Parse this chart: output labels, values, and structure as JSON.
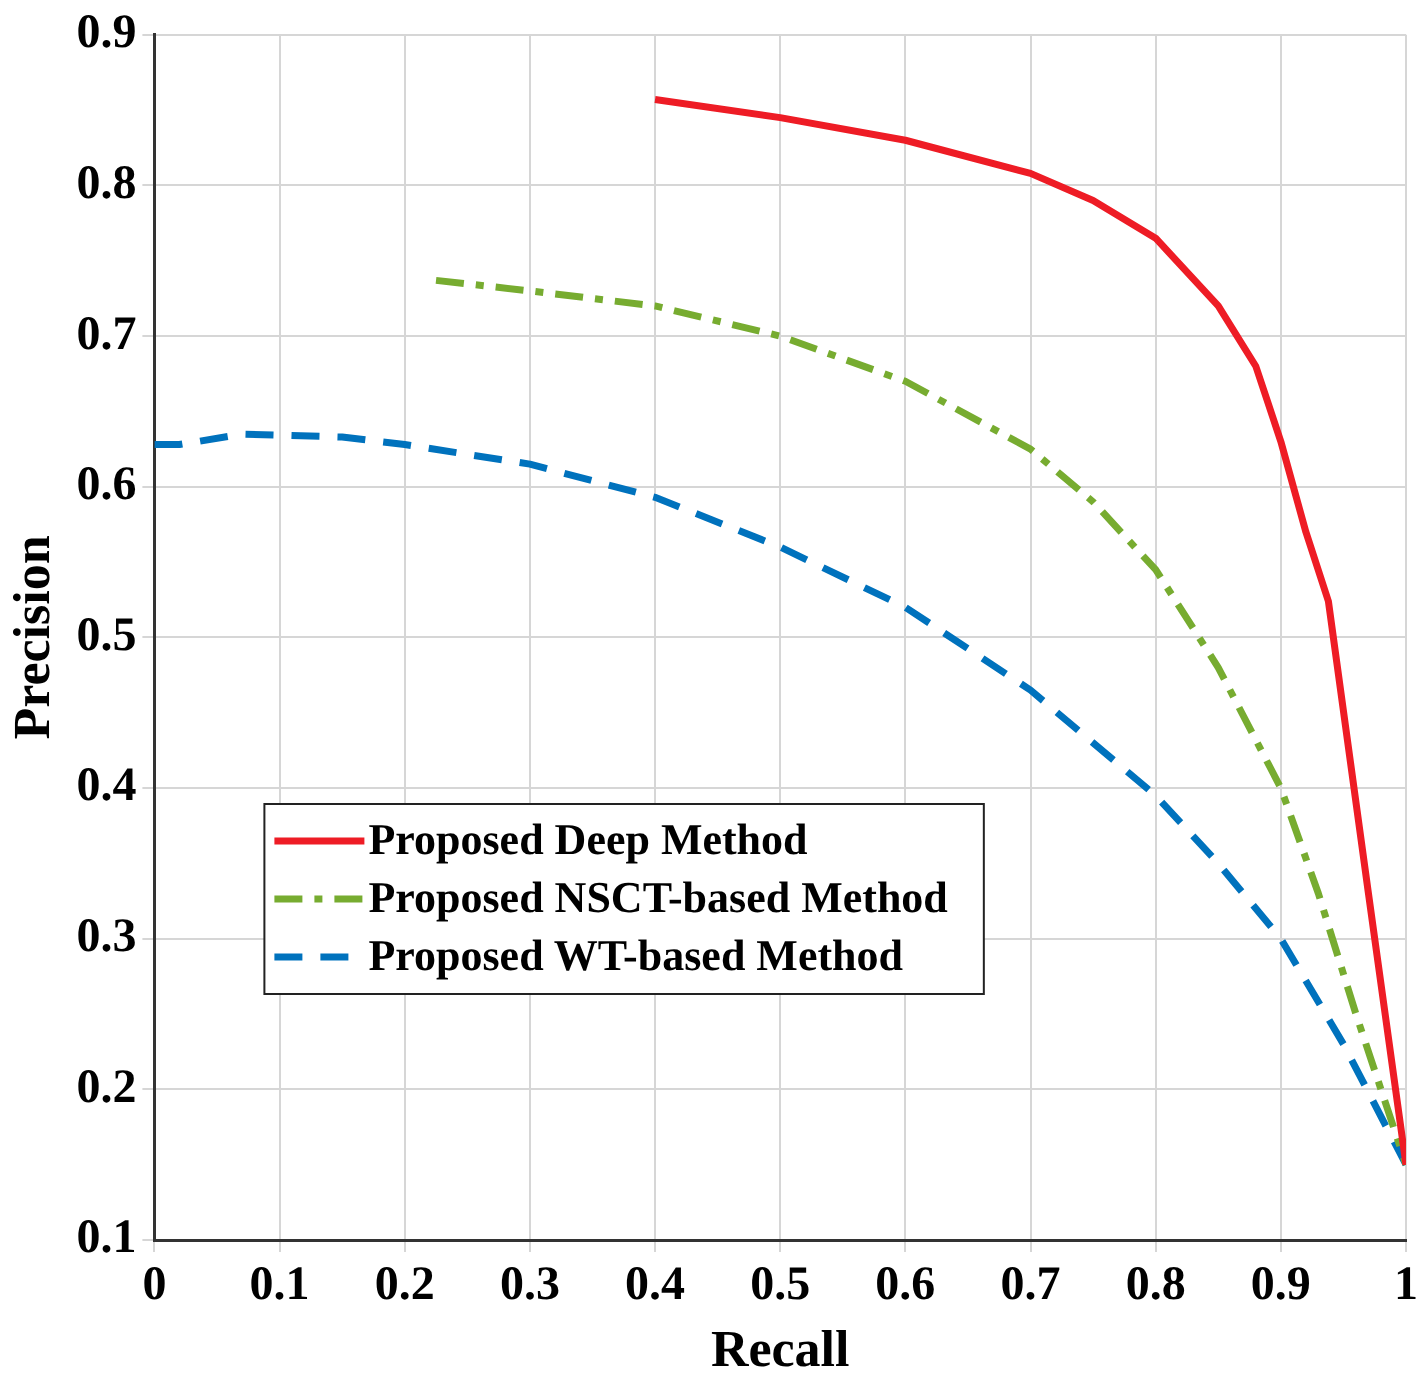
{
  "chart_data": {
    "type": "line",
    "xlabel": "Recall",
    "ylabel": "Precision",
    "xlim": [
      0,
      1
    ],
    "ylim": [
      0.1,
      0.9
    ],
    "xticks": [
      0,
      0.1,
      0.2,
      0.3,
      0.4,
      0.5,
      0.6,
      0.7,
      0.8,
      0.9,
      1
    ],
    "yticks": [
      0.1,
      0.2,
      0.3,
      0.4,
      0.5,
      0.6,
      0.7,
      0.8,
      0.9
    ],
    "grid": true,
    "legend": "bottom left",
    "marker": "none",
    "series": [
      {
        "name": "Proposed Deep Method",
        "color": "#ee1c25",
        "line_style": "solid",
        "x": [
          0.4,
          0.5,
          0.6,
          0.7,
          0.75,
          0.8,
          0.85,
          0.88,
          0.9,
          0.92,
          0.938,
          0.97,
          1.0
        ],
        "values": [
          0.857,
          0.845,
          0.83,
          0.808,
          0.79,
          0.765,
          0.72,
          0.68,
          0.63,
          0.57,
          0.524,
          0.33,
          0.15
        ]
      },
      {
        "name": "Proposed NSCT-based Method",
        "color": "#77ac30",
        "line_style": "dashdot",
        "x": [
          0.225,
          0.3,
          0.4,
          0.5,
          0.6,
          0.7,
          0.75,
          0.8,
          0.85,
          0.9,
          0.93,
          0.96,
          0.98,
          1.0
        ],
        "values": [
          0.737,
          0.73,
          0.72,
          0.7,
          0.67,
          0.625,
          0.59,
          0.545,
          0.48,
          0.4,
          0.33,
          0.25,
          0.2,
          0.15
        ]
      },
      {
        "name": "Proposed WT-based Method",
        "color": "#0072bd",
        "line_style": "dashed",
        "x": [
          0,
          0.02,
          0.07,
          0.15,
          0.2,
          0.3,
          0.4,
          0.5,
          0.6,
          0.7,
          0.8,
          0.85,
          0.9,
          0.95,
          1.0
        ],
        "values": [
          0.628,
          0.628,
          0.635,
          0.633,
          0.628,
          0.615,
          0.593,
          0.56,
          0.52,
          0.465,
          0.395,
          0.35,
          0.3,
          0.23,
          0.15
        ]
      }
    ]
  }
}
